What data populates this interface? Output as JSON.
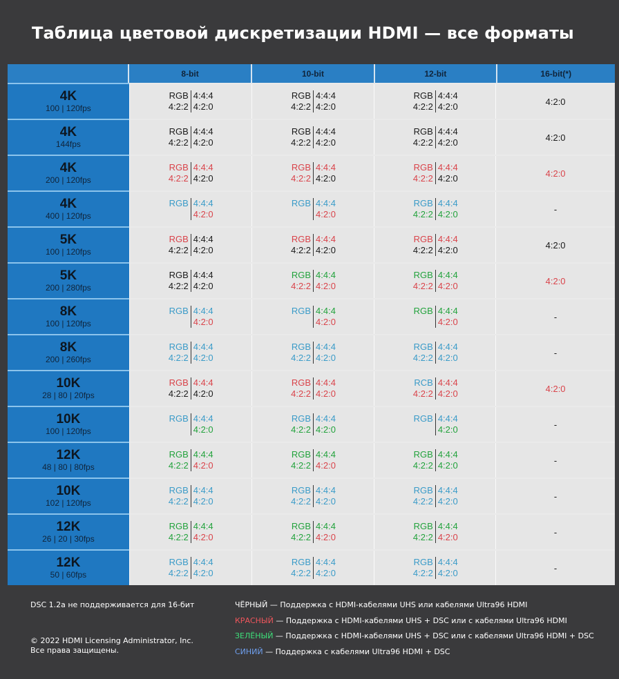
{
  "title": "Таблица цветовой дискретизации HDMI — все форматы",
  "colors": {
    "k": "#1a1a1a",
    "r": "#d9434a",
    "g": "#22a23c",
    "b": "#3a9bc8",
    "header_blue": "#2a7fc4",
    "label_blue": "#1f78c1"
  },
  "columns": [
    "",
    "8-bit",
    "10-bit",
    "12-bit",
    "16-bit(*)"
  ],
  "rows": [
    {
      "res": "4K",
      "fps": "100 | 120fps",
      "cells": [
        [
          [
            "RGB",
            "k"
          ],
          [
            "4:4:4",
            "k"
          ],
          [
            "4:2:2",
            "k"
          ],
          [
            "4:2:0",
            "k"
          ]
        ],
        [
          [
            "RGB",
            "k"
          ],
          [
            "4:4:4",
            "k"
          ],
          [
            "4:2:2",
            "k"
          ],
          [
            "4:2:0",
            "k"
          ]
        ],
        [
          [
            "RGB",
            "k"
          ],
          [
            "4:4:4",
            "k"
          ],
          [
            "4:2:2",
            "k"
          ],
          [
            "4:2:0",
            "k"
          ]
        ]
      ],
      "b16": [
        "4:2:0",
        "k"
      ]
    },
    {
      "res": "4K",
      "fps": "144fps",
      "cells": [
        [
          [
            "RGB",
            "k"
          ],
          [
            "4:4:4",
            "k"
          ],
          [
            "4:2:2",
            "k"
          ],
          [
            "4:2:0",
            "k"
          ]
        ],
        [
          [
            "RGB",
            "k"
          ],
          [
            "4:4:4",
            "k"
          ],
          [
            "4:2:2",
            "k"
          ],
          [
            "4:2:0",
            "k"
          ]
        ],
        [
          [
            "RGB",
            "k"
          ],
          [
            "4:4:4",
            "k"
          ],
          [
            "4:2:2",
            "k"
          ],
          [
            "4:2:0",
            "k"
          ]
        ]
      ],
      "b16": [
        "4:2:0",
        "k"
      ]
    },
    {
      "res": "4K",
      "fps": "200 | 120fps",
      "cells": [
        [
          [
            "RGB",
            "r"
          ],
          [
            "4:4:4",
            "r"
          ],
          [
            "4:2:2",
            "r"
          ],
          [
            "4:2:0",
            "k"
          ]
        ],
        [
          [
            "RGB",
            "r"
          ],
          [
            "4:4:4",
            "r"
          ],
          [
            "4:2:2",
            "r"
          ],
          [
            "4:2:0",
            "k"
          ]
        ],
        [
          [
            "RGB",
            "r"
          ],
          [
            "4:4:4",
            "r"
          ],
          [
            "4:2:2",
            "r"
          ],
          [
            "4:2:0",
            "k"
          ]
        ]
      ],
      "b16": [
        "4:2:0",
        "r"
      ]
    },
    {
      "res": "4K",
      "fps": "400 | 120fps",
      "cells": [
        [
          [
            "RGB",
            "b"
          ],
          [
            "4:4:4",
            "b"
          ],
          [
            "",
            ""
          ],
          [
            "4:2:0",
            "r"
          ]
        ],
        [
          [
            "RGB",
            "b"
          ],
          [
            "4:4:4",
            "b"
          ],
          [
            "",
            ""
          ],
          [
            "4:2:0",
            "r"
          ]
        ],
        [
          [
            "RGB",
            "b"
          ],
          [
            "4:4:4",
            "b"
          ],
          [
            "4:2:2",
            "g"
          ],
          [
            "4:2:0",
            "g"
          ]
        ]
      ],
      "b16": [
        "-",
        "k"
      ]
    },
    {
      "res": "5K",
      "fps": "100 | 120fps",
      "cells": [
        [
          [
            "RGB",
            "r"
          ],
          [
            "4:4:4",
            "k"
          ],
          [
            "4:2:2",
            "k"
          ],
          [
            "4:2:0",
            "k"
          ]
        ],
        [
          [
            "RGB",
            "r"
          ],
          [
            "4:4:4",
            "r"
          ],
          [
            "4:2:2",
            "k"
          ],
          [
            "4:2:0",
            "k"
          ]
        ],
        [
          [
            "RGB",
            "r"
          ],
          [
            "4:4:4",
            "r"
          ],
          [
            "4:2:2",
            "k"
          ],
          [
            "4:2:0",
            "k"
          ]
        ]
      ],
      "b16": [
        "4:2:0",
        "k"
      ]
    },
    {
      "res": "5K",
      "fps": "200 | 280fps",
      "cells": [
        [
          [
            "RGB",
            "k"
          ],
          [
            "4:4:4",
            "k"
          ],
          [
            "4:2:2",
            "k"
          ],
          [
            "4:2:0",
            "k"
          ]
        ],
        [
          [
            "RGB",
            "g"
          ],
          [
            "4:4:4",
            "g"
          ],
          [
            "4:2:2",
            "r"
          ],
          [
            "4:2:0",
            "r"
          ]
        ],
        [
          [
            "RGB",
            "g"
          ],
          [
            "4:4:4",
            "g"
          ],
          [
            "4:2:2",
            "r"
          ],
          [
            "4:2:0",
            "r"
          ]
        ]
      ],
      "b16": [
        "4:2:0",
        "r"
      ]
    },
    {
      "res": "8K",
      "fps": "100 | 120fps",
      "cells": [
        [
          [
            "RGB",
            "b"
          ],
          [
            "4:4:4",
            "b"
          ],
          [
            "",
            ""
          ],
          [
            "4:2:0",
            "r"
          ]
        ],
        [
          [
            "RGB",
            "b"
          ],
          [
            "4:4:4",
            "g"
          ],
          [
            "",
            ""
          ],
          [
            "4:2:0",
            "r"
          ]
        ],
        [
          [
            "RGB",
            "g"
          ],
          [
            "4:4:4",
            "g"
          ],
          [
            "",
            ""
          ],
          [
            "4:2:0",
            "r"
          ]
        ]
      ],
      "b16": [
        "-",
        "k"
      ]
    },
    {
      "res": "8K",
      "fps": "200 | 260fps",
      "cells": [
        [
          [
            "RGB",
            "b"
          ],
          [
            "4:4:4",
            "b"
          ],
          [
            "4:2:2",
            "b"
          ],
          [
            "4:2:0",
            "b"
          ]
        ],
        [
          [
            "RGB",
            "b"
          ],
          [
            "4:4:4",
            "b"
          ],
          [
            "4:2:2",
            "b"
          ],
          [
            "4:2:0",
            "b"
          ]
        ],
        [
          [
            "RGB",
            "b"
          ],
          [
            "4:4:4",
            "b"
          ],
          [
            "4:2:2",
            "b"
          ],
          [
            "4:2:0",
            "b"
          ]
        ]
      ],
      "b16": [
        "-",
        "k"
      ]
    },
    {
      "res": "10K",
      "fps": "28 | 80 | 20fps",
      "cells": [
        [
          [
            "RGB",
            "r"
          ],
          [
            "4:4:4",
            "r"
          ],
          [
            "4:2:2",
            "k"
          ],
          [
            "4:2:0",
            "k"
          ]
        ],
        [
          [
            "RGB",
            "r"
          ],
          [
            "4:4:4",
            "r"
          ],
          [
            "4:2:2",
            "r"
          ],
          [
            "4:2:0",
            "r"
          ]
        ],
        [
          [
            "RCB",
            "b"
          ],
          [
            "4:4:4",
            "r"
          ],
          [
            "4:2:2",
            "r"
          ],
          [
            "4:2:0",
            "r"
          ]
        ]
      ],
      "b16": [
        "4:2:0",
        "r"
      ]
    },
    {
      "res": "10K",
      "fps": "100 | 120fps",
      "cells": [
        [
          [
            "RGB",
            "b"
          ],
          [
            "4:4:4",
            "b"
          ],
          [
            "",
            ""
          ],
          [
            "4:2:0",
            "g"
          ]
        ],
        [
          [
            "RGB",
            "b"
          ],
          [
            "4:4:4",
            "b"
          ],
          [
            "4:2:2",
            "g"
          ],
          [
            "4:2:0",
            "g"
          ]
        ],
        [
          [
            "RGB",
            "b"
          ],
          [
            "4:4:4",
            "b"
          ],
          [
            "",
            ""
          ],
          [
            "4:2:0",
            "g"
          ]
        ]
      ],
      "b16": [
        "-",
        "k"
      ]
    },
    {
      "res": "12K",
      "fps": "48 | 80 | 80fps",
      "cells": [
        [
          [
            "RGB",
            "g"
          ],
          [
            "4:4:4",
            "g"
          ],
          [
            "4:2:2",
            "g"
          ],
          [
            "4:2:0",
            "r"
          ]
        ],
        [
          [
            "RGB",
            "g"
          ],
          [
            "4:4:4",
            "g"
          ],
          [
            "4:2:2",
            "g"
          ],
          [
            "4:2:0",
            "r"
          ]
        ],
        [
          [
            "RGB",
            "g"
          ],
          [
            "4:4:4",
            "g"
          ],
          [
            "4:2:2",
            "g"
          ],
          [
            "4:2:0",
            "g"
          ]
        ]
      ],
      "b16": [
        "-",
        "k"
      ]
    },
    {
      "res": "10K",
      "fps": "102 | 120fps",
      "cells": [
        [
          [
            "RGB",
            "b"
          ],
          [
            "4:4:4",
            "b"
          ],
          [
            "4:2:2",
            "b"
          ],
          [
            "4:2:0",
            "b"
          ]
        ],
        [
          [
            "RGB",
            "b"
          ],
          [
            "4:4:4",
            "b"
          ],
          [
            "4:2:2",
            "b"
          ],
          [
            "4:2:0",
            "b"
          ]
        ],
        [
          [
            "RGB",
            "b"
          ],
          [
            "4:4:4",
            "b"
          ],
          [
            "4:2:2",
            "b"
          ],
          [
            "4:2:0",
            "b"
          ]
        ]
      ],
      "b16": [
        "-",
        "k"
      ]
    },
    {
      "res": "12K",
      "fps": "26 | 20 | 30fps",
      "cells": [
        [
          [
            "RGB",
            "g"
          ],
          [
            "4:4:4",
            "g"
          ],
          [
            "4:2:2",
            "g"
          ],
          [
            "4:2:0",
            "r"
          ]
        ],
        [
          [
            "RGB",
            "g"
          ],
          [
            "4:4:4",
            "g"
          ],
          [
            "4:2:2",
            "g"
          ],
          [
            "4:2:0",
            "r"
          ]
        ],
        [
          [
            "RGB",
            "g"
          ],
          [
            "4:4:4",
            "g"
          ],
          [
            "4:2:2",
            "g"
          ],
          [
            "4:2:0",
            "r"
          ]
        ]
      ],
      "b16": [
        "-",
        "k"
      ]
    },
    {
      "res": "12K",
      "fps": "50 | 60fps",
      "cells": [
        [
          [
            "RGB",
            "b"
          ],
          [
            "4:4:4",
            "b"
          ],
          [
            "4:2:2",
            "b"
          ],
          [
            "4:2:0",
            "b"
          ]
        ],
        [
          [
            "RGB",
            "b"
          ],
          [
            "4:4:4",
            "b"
          ],
          [
            "4:2:2",
            "b"
          ],
          [
            "4:2:0",
            "b"
          ]
        ],
        [
          [
            "RGB",
            "b"
          ],
          [
            "4:4:4",
            "b"
          ],
          [
            "4:2:2",
            "b"
          ],
          [
            "4:2:0",
            "b"
          ]
        ]
      ],
      "b16": [
        "-",
        "k"
      ]
    }
  ],
  "footer": {
    "note": "DSC 1.2a не поддерживается для 16-бит",
    "copyright": "© 2022 HDMI Licensing Administrator, Inc.",
    "rights": "Все права защищены.",
    "legend": [
      {
        "word": "ЧЁРНЫЙ",
        "color": "#ffffff",
        "text": " — Поддержка с HDMI-кабелями UHS или кабелями Ultra96 HDMI"
      },
      {
        "word": "КРАСНЫЙ",
        "color": "#f0565c",
        "text": " — Поддержка с HDMI-кабелями UHS + DSC или с кабелями Ultra96 HDMI"
      },
      {
        "word": "ЗЕЛЁНЫЙ",
        "color": "#3ee07a",
        "text": " — Поддержка с HDMI-кабелями UHS + DSC или с кабелями Ultra96 HDMI + DSC"
      },
      {
        "word": "СИНИЙ",
        "color": "#6fa0f0",
        "text": " — Поддержка с кабелями Ultra96 HDMI + DSC"
      }
    ]
  }
}
